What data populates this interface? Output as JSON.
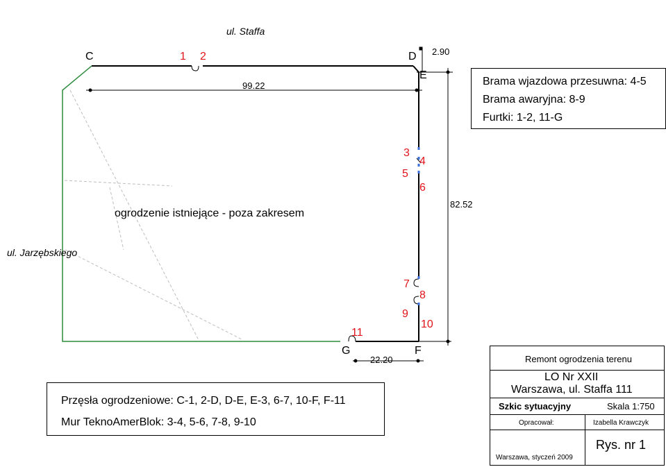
{
  "streets": {
    "top": "ul. Staffa",
    "left": "ul. Jarzębskiego"
  },
  "corners": {
    "c": "C",
    "d": "D",
    "e": "E",
    "f": "F",
    "g": "G"
  },
  "points": {
    "p1": "1",
    "p2": "2",
    "p3": "3",
    "p4": "4",
    "p5": "5",
    "p6": "6",
    "p7": "7",
    "p8": "8",
    "p9": "9",
    "p10": "10",
    "p11": "11"
  },
  "dimensions": {
    "top_width": "99.22",
    "offset_de": "2.90",
    "right_height": "82.52",
    "bottom_width": "22.20"
  },
  "existing_fence_label": "ogrodzenie istniejące - poza zakresem",
  "gates_box": {
    "line1": "Brama wjazdowa przesuwna: 4-5",
    "line2": "Brama awaryjna: 8-9",
    "line3": "Furtki: 1-2, 11-G"
  },
  "spans_box": {
    "line1": "Przęsła ogrodzeniowe: C-1, 2-D, D-E, E-3, 6-7, 10-F, F-11",
    "line2": "Mur TeknoAmerBlok: 3-4, 5-6, 7-8, 9-10"
  },
  "title_block": {
    "project": "Remont ogrodzenia terenu",
    "school": "LO Nr XXII",
    "address": "Warszawa, ul. Staffa 111",
    "sheet_type": "Szkic sytuacyjny",
    "scale": "Skala 1:750",
    "prepared_label": "Opracował:",
    "author": "Izabella Krawczyk",
    "place_date": "Warszawa, styczeń 2009",
    "drawing_no": "Rys. nr 1"
  },
  "colors": {
    "existing_fence": "#2e8b3d",
    "point_labels": "#e0141a",
    "wall_markers": "#3b6fd8"
  }
}
